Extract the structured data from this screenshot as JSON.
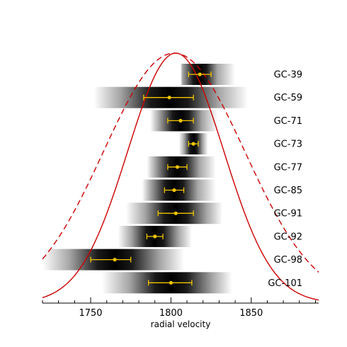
{
  "chart_data": {
    "type": "scatter",
    "xlabel": "radial velocity",
    "xlim": [
      1720,
      1892
    ],
    "x_ticks": [
      1750,
      1800,
      1850
    ],
    "colors": {
      "curve": "#cc0000",
      "point": "#f2c500",
      "bar": "#000000"
    },
    "curves": [
      {
        "style": "solid",
        "mean": 1803,
        "sigma": 30
      },
      {
        "style": "dashed",
        "mean": 1802,
        "sigma": 44
      }
    ],
    "clusters": [
      {
        "label": "GC-39",
        "v": 1818,
        "err_minus": 7,
        "err_plus": 7,
        "band": [
          1806,
          1840
        ]
      },
      {
        "label": "GC-59",
        "v": 1799,
        "err_minus": 16,
        "err_plus": 15,
        "band": [
          1752,
          1848
        ]
      },
      {
        "label": "GC-71",
        "v": 1806,
        "err_minus": 8,
        "err_plus": 8,
        "band": [
          1787,
          1829
        ]
      },
      {
        "label": "GC-73",
        "v": 1814,
        "err_minus": 3,
        "err_plus": 3,
        "band": [
          1805,
          1823
        ]
      },
      {
        "label": "GC-77",
        "v": 1804,
        "err_minus": 6,
        "err_plus": 6,
        "band": [
          1785,
          1828
        ]
      },
      {
        "label": "GC-85",
        "v": 1802,
        "err_minus": 6,
        "err_plus": 6,
        "band": [
          1782,
          1828
        ]
      },
      {
        "label": "GC-91",
        "v": 1803,
        "err_minus": 11,
        "err_plus": 11,
        "band": [
          1772,
          1832
        ]
      },
      {
        "label": "GC-92",
        "v": 1790,
        "err_minus": 5,
        "err_plus": 5,
        "band": [
          1767,
          1813
        ]
      },
      {
        "label": "GC-98",
        "v": 1765,
        "err_minus": 15,
        "err_plus": 10,
        "band": [
          1720,
          1808
        ]
      },
      {
        "label": "GC-101",
        "v": 1800,
        "err_minus": 14,
        "err_plus": 13,
        "band": [
          1757,
          1838
        ]
      }
    ]
  }
}
